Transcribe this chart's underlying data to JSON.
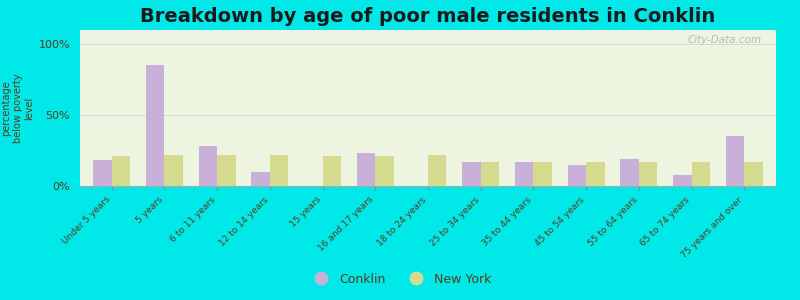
{
  "title": "Breakdown by age of poor male residents in Conklin",
  "categories": [
    "Under 5 years",
    "5 years",
    "6 to 11 years",
    "12 to 14 years",
    "15 years",
    "16 and 17 years",
    "18 to 24 years",
    "25 to 34 years",
    "35 to 44 years",
    "45 to 54 years",
    "55 to 64 years",
    "65 to 74 years",
    "75 years and over"
  ],
  "conklin_values": [
    18,
    85,
    28,
    10,
    0,
    23,
    0,
    17,
    17,
    15,
    19,
    8,
    35
  ],
  "newyork_values": [
    21,
    22,
    22,
    22,
    21,
    21,
    22,
    17,
    17,
    17,
    17,
    17,
    17
  ],
  "conklin_color": "#c9b0d8",
  "newyork_color": "#d4db8e",
  "plot_bg": "#edf5e0",
  "outer_bg": "#00e8e8",
  "ylabel": "percentage\nbelow poverty\nlevel",
  "yticks": [
    0,
    50,
    100
  ],
  "ytick_labels": [
    "0%",
    "50%",
    "100%"
  ],
  "title_fontsize": 14,
  "legend_labels": [
    "Conklin",
    "New York"
  ],
  "bar_width": 0.35,
  "watermark": "City-Data.com"
}
